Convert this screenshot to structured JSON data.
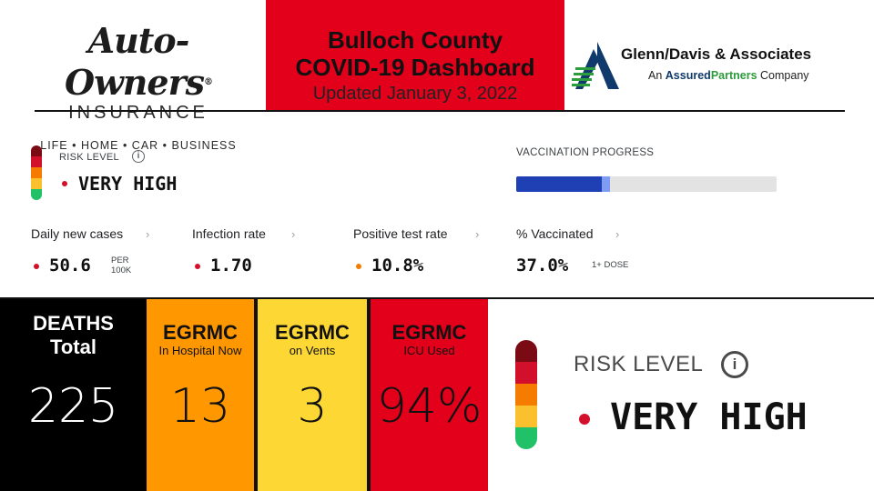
{
  "header": {
    "left_logo": {
      "name": "Auto-Owners",
      "reg_mark": "®",
      "word": "INSURANCE",
      "tagline": "LIFE • HOME • CAR • BUSINESS"
    },
    "title": {
      "line1": "Bulloch County",
      "line2": "COVID-19 Dashboard",
      "updated": "Updated January 3, 2022",
      "bg_color": "#e2001a"
    },
    "right_logo": {
      "name": "Glenn/Davis & Associates",
      "sub_prefix": "An",
      "sub_brand_a": "Assured",
      "sub_brand_b": "Partners",
      "sub_suffix": "Company",
      "icon": "glenn-davis-logo-mark"
    }
  },
  "risk": {
    "label": "RISK LEVEL",
    "value": "VERY HIGH",
    "info_icon": "info-icon",
    "dot_color": "#d3102b",
    "scale_colors": [
      "#7a0a14",
      "#d3102b",
      "#f57c00",
      "#fbc02d",
      "#21c168"
    ]
  },
  "vaccination": {
    "label": "VACCINATION PROGRESS",
    "completed_fraction": 0.33,
    "partial_fraction": 0.03,
    "dark_color": "#1f3fb5",
    "light_color": "#7f9cf5"
  },
  "metrics": [
    {
      "label": "Daily new cases",
      "value": "50.6",
      "unit_line1": "PER",
      "unit_line2": "100K",
      "dot_color": "#d3102b"
    },
    {
      "label": "Infection rate",
      "value": "1.70",
      "dot_color": "#d3102b"
    },
    {
      "label": "Positive test rate",
      "value": "10.8%",
      "dot_color": "#f57c00"
    },
    {
      "label": "% Vaccinated",
      "value": "37.0%",
      "unit": "1+ DOSE"
    }
  ],
  "tiles": [
    {
      "title1": "DEATHS",
      "title2": "Total",
      "value": "225",
      "bg": "#000000",
      "fg": "#ffffff"
    },
    {
      "title": "EGRMC",
      "subtitle": "In Hospital Now",
      "value": "13",
      "bg": "#ff9800",
      "fg": "#111111"
    },
    {
      "title": "EGRMC",
      "subtitle": "on Vents",
      "value": "3",
      "bg": "#fdd835",
      "fg": "#111111"
    },
    {
      "title": "EGRMC",
      "subtitle": "ICU Used",
      "value": "94%",
      "bg": "#e2001a",
      "fg": "#111111"
    }
  ],
  "big_risk": {
    "label": "RISK LEVEL",
    "value": "VERY HIGH"
  }
}
